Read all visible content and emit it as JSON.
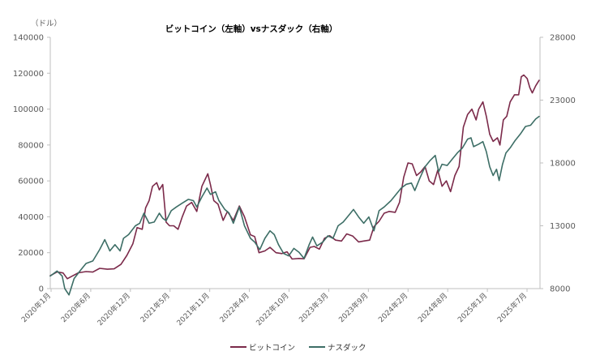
{
  "chart_data": {
    "type": "line",
    "title": "ビットコイン（左軸）vsナスダック（右軸）",
    "ylabel_left": "（ドル）",
    "x_tick_labels": [
      "2020年1月",
      "2020年6月",
      "2020年12月",
      "2021年5月",
      "2021年11月",
      "2022年4月",
      "2022年10月",
      "2023年3月",
      "2023年9月",
      "2024年2月",
      "2024年8月",
      "2025年1月",
      "2025年7月"
    ],
    "left_axis": {
      "min": 0,
      "max": 140000,
      "ticks": [
        "0",
        "20000",
        "40000",
        "60000",
        "80000",
        "100000",
        "120000",
        "140000"
      ]
    },
    "right_axis": {
      "min": 8000,
      "max": 28000,
      "ticks": [
        "8000",
        "13000",
        "18000",
        "23000",
        "28000"
      ]
    },
    "x_domain": [
      2020.0,
      2025.75
    ],
    "series": [
      {
        "name": "ビットコイン",
        "axis": "left",
        "color": "#7b2a4a",
        "points": [
          [
            2020.0,
            7200
          ],
          [
            2020.08,
            9300
          ],
          [
            2020.15,
            8700
          ],
          [
            2020.2,
            5500
          ],
          [
            2020.25,
            6800
          ],
          [
            2020.33,
            8800
          ],
          [
            2020.42,
            9500
          ],
          [
            2020.5,
            9200
          ],
          [
            2020.58,
            11300
          ],
          [
            2020.67,
            10800
          ],
          [
            2020.75,
            11000
          ],
          [
            2020.83,
            13500
          ],
          [
            2020.9,
            18500
          ],
          [
            2020.97,
            25000
          ],
          [
            2021.02,
            34000
          ],
          [
            2021.08,
            33000
          ],
          [
            2021.12,
            45000
          ],
          [
            2021.16,
            49000
          ],
          [
            2021.2,
            57000
          ],
          [
            2021.25,
            59000
          ],
          [
            2021.28,
            55000
          ],
          [
            2021.32,
            58000
          ],
          [
            2021.36,
            37000
          ],
          [
            2021.4,
            35000
          ],
          [
            2021.45,
            35000
          ],
          [
            2021.5,
            33000
          ],
          [
            2021.55,
            40000
          ],
          [
            2021.6,
            46000
          ],
          [
            2021.66,
            48000
          ],
          [
            2021.72,
            43000
          ],
          [
            2021.78,
            57000
          ],
          [
            2021.85,
            64000
          ],
          [
            2021.88,
            58000
          ],
          [
            2021.92,
            49000
          ],
          [
            2021.97,
            47000
          ],
          [
            2022.03,
            38000
          ],
          [
            2022.08,
            43000
          ],
          [
            2022.15,
            38000
          ],
          [
            2022.22,
            46000
          ],
          [
            2022.28,
            40000
          ],
          [
            2022.35,
            30000
          ],
          [
            2022.4,
            29000
          ],
          [
            2022.45,
            20000
          ],
          [
            2022.52,
            21000
          ],
          [
            2022.58,
            23000
          ],
          [
            2022.65,
            20000
          ],
          [
            2022.72,
            19500
          ],
          [
            2022.78,
            20500
          ],
          [
            2022.84,
            16500
          ],
          [
            2022.92,
            16800
          ],
          [
            2022.98,
            16600
          ],
          [
            2023.05,
            23000
          ],
          [
            2023.1,
            23500
          ],
          [
            2023.16,
            22000
          ],
          [
            2023.22,
            28000
          ],
          [
            2023.28,
            29500
          ],
          [
            2023.35,
            27000
          ],
          [
            2023.42,
            26500
          ],
          [
            2023.48,
            30500
          ],
          [
            2023.55,
            29300
          ],
          [
            2023.62,
            26000
          ],
          [
            2023.68,
            26500
          ],
          [
            2023.75,
            27000
          ],
          [
            2023.8,
            34500
          ],
          [
            2023.86,
            37500
          ],
          [
            2023.92,
            42000
          ],
          [
            2023.98,
            43000
          ],
          [
            2024.05,
            42500
          ],
          [
            2024.1,
            48000
          ],
          [
            2024.15,
            62000
          ],
          [
            2024.2,
            70000
          ],
          [
            2024.25,
            69500
          ],
          [
            2024.3,
            63000
          ],
          [
            2024.35,
            65000
          ],
          [
            2024.4,
            68000
          ],
          [
            2024.45,
            60000
          ],
          [
            2024.5,
            58000
          ],
          [
            2024.55,
            66000
          ],
          [
            2024.6,
            57000
          ],
          [
            2024.65,
            60000
          ],
          [
            2024.7,
            54000
          ],
          [
            2024.75,
            63000
          ],
          [
            2024.8,
            68000
          ],
          [
            2024.85,
            90000
          ],
          [
            2024.9,
            97000
          ],
          [
            2024.95,
            100000
          ],
          [
            2025.0,
            94000
          ],
          [
            2025.03,
            100000
          ],
          [
            2025.08,
            104000
          ],
          [
            2025.12,
            96000
          ],
          [
            2025.16,
            86000
          ],
          [
            2025.2,
            82000
          ],
          [
            2025.25,
            84000
          ],
          [
            2025.28,
            80000
          ],
          [
            2025.32,
            94000
          ],
          [
            2025.36,
            96000
          ],
          [
            2025.4,
            104000
          ],
          [
            2025.45,
            108000
          ],
          [
            2025.5,
            108000
          ],
          [
            2025.53,
            118000
          ],
          [
            2025.56,
            119000
          ],
          [
            2025.6,
            117000
          ],
          [
            2025.63,
            112000
          ],
          [
            2025.66,
            109000
          ],
          [
            2025.7,
            113000
          ],
          [
            2025.74,
            116000
          ]
        ]
      },
      {
        "name": "ナスダック",
        "axis": "right",
        "color": "#3d6e66",
        "points": [
          [
            2020.0,
            9000
          ],
          [
            2020.08,
            9400
          ],
          [
            2020.14,
            9000
          ],
          [
            2020.17,
            8000
          ],
          [
            2020.22,
            7500
          ],
          [
            2020.28,
            8800
          ],
          [
            2020.36,
            9500
          ],
          [
            2020.42,
            10000
          ],
          [
            2020.5,
            10200
          ],
          [
            2020.58,
            11100
          ],
          [
            2020.64,
            11900
          ],
          [
            2020.7,
            11000
          ],
          [
            2020.76,
            11500
          ],
          [
            2020.82,
            11000
          ],
          [
            2020.86,
            12000
          ],
          [
            2020.92,
            12300
          ],
          [
            2021.0,
            13000
          ],
          [
            2021.05,
            13200
          ],
          [
            2021.1,
            14000
          ],
          [
            2021.16,
            13200
          ],
          [
            2021.22,
            13300
          ],
          [
            2021.28,
            14000
          ],
          [
            2021.32,
            13600
          ],
          [
            2021.36,
            13400
          ],
          [
            2021.42,
            14200
          ],
          [
            2021.48,
            14500
          ],
          [
            2021.55,
            14800
          ],
          [
            2021.62,
            15100
          ],
          [
            2021.68,
            15000
          ],
          [
            2021.72,
            14500
          ],
          [
            2021.78,
            15300
          ],
          [
            2021.84,
            16000
          ],
          [
            2021.88,
            15500
          ],
          [
            2021.94,
            15700
          ],
          [
            2021.98,
            15000
          ],
          [
            2022.05,
            14300
          ],
          [
            2022.1,
            14000
          ],
          [
            2022.15,
            13200
          ],
          [
            2022.22,
            14500
          ],
          [
            2022.28,
            13000
          ],
          [
            2022.35,
            12000
          ],
          [
            2022.4,
            11700
          ],
          [
            2022.46,
            11100
          ],
          [
            2022.52,
            12000
          ],
          [
            2022.58,
            12600
          ],
          [
            2022.63,
            12300
          ],
          [
            2022.68,
            11500
          ],
          [
            2022.74,
            10800
          ],
          [
            2022.8,
            10600
          ],
          [
            2022.86,
            11200
          ],
          [
            2022.92,
            10900
          ],
          [
            2022.98,
            10400
          ],
          [
            2023.04,
            11500
          ],
          [
            2023.08,
            12100
          ],
          [
            2023.13,
            11400
          ],
          [
            2023.2,
            11700
          ],
          [
            2023.26,
            12200
          ],
          [
            2023.32,
            12000
          ],
          [
            2023.38,
            13000
          ],
          [
            2023.44,
            13300
          ],
          [
            2023.5,
            13800
          ],
          [
            2023.56,
            14300
          ],
          [
            2023.62,
            13700
          ],
          [
            2023.68,
            13200
          ],
          [
            2023.74,
            13700
          ],
          [
            2023.8,
            12600
          ],
          [
            2023.86,
            14200
          ],
          [
            2023.92,
            14500
          ],
          [
            2024.0,
            15000
          ],
          [
            2024.06,
            15500
          ],
          [
            2024.12,
            16000
          ],
          [
            2024.18,
            16300
          ],
          [
            2024.24,
            16400
          ],
          [
            2024.28,
            15800
          ],
          [
            2024.34,
            16800
          ],
          [
            2024.4,
            17700
          ],
          [
            2024.46,
            18200
          ],
          [
            2024.52,
            18600
          ],
          [
            2024.56,
            17300
          ],
          [
            2024.6,
            17900
          ],
          [
            2024.66,
            17800
          ],
          [
            2024.72,
            18300
          ],
          [
            2024.78,
            18800
          ],
          [
            2024.84,
            19200
          ],
          [
            2024.9,
            19900
          ],
          [
            2024.94,
            20000
          ],
          [
            2024.97,
            19300
          ],
          [
            2025.03,
            19500
          ],
          [
            2025.08,
            19700
          ],
          [
            2025.12,
            18900
          ],
          [
            2025.16,
            17700
          ],
          [
            2025.2,
            17000
          ],
          [
            2025.24,
            17500
          ],
          [
            2025.27,
            16600
          ],
          [
            2025.31,
            17900
          ],
          [
            2025.35,
            18800
          ],
          [
            2025.4,
            19200
          ],
          [
            2025.46,
            19800
          ],
          [
            2025.52,
            20300
          ],
          [
            2025.58,
            20900
          ],
          [
            2025.64,
            21000
          ],
          [
            2025.7,
            21500
          ],
          [
            2025.74,
            21700
          ]
        ]
      }
    ]
  }
}
